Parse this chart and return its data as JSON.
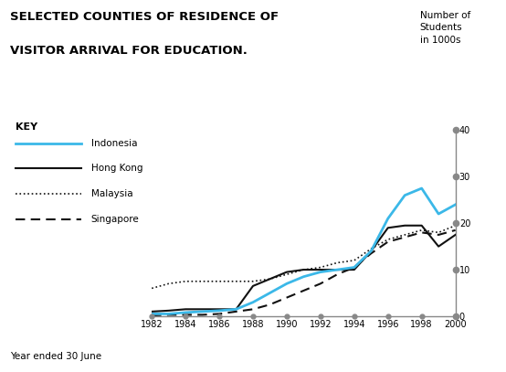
{
  "title_line1": "SELECTED COUNTIES OF RESIDENCE OF",
  "title_line2": "VISITOR ARRIVAL FOR EDUCATION.",
  "ylabel_text": "Number of\nStudents\nin 1000s",
  "xlabel": "Year ended 30 June",
  "years": [
    1982,
    1983,
    1984,
    1985,
    1986,
    1987,
    1988,
    1989,
    1990,
    1991,
    1992,
    1993,
    1994,
    1995,
    1996,
    1997,
    1998,
    1999,
    2000
  ],
  "indonesia": [
    0.5,
    0.5,
    0.8,
    1.0,
    1.2,
    1.5,
    3.0,
    5.0,
    7.0,
    8.5,
    9.5,
    10.0,
    10.5,
    14.0,
    21.0,
    26.0,
    27.5,
    22.0,
    24.0
  ],
  "hong_kong": [
    1.0,
    1.2,
    1.5,
    1.5,
    1.5,
    1.5,
    6.5,
    8.0,
    9.5,
    10.0,
    10.0,
    10.0,
    10.0,
    14.0,
    19.0,
    19.5,
    19.5,
    15.0,
    17.5
  ],
  "malaysia": [
    6.0,
    7.0,
    7.5,
    7.5,
    7.5,
    7.5,
    7.5,
    8.0,
    9.0,
    10.0,
    10.5,
    11.5,
    12.0,
    14.5,
    16.5,
    17.5,
    18.5,
    18.0,
    19.5
  ],
  "singapore": [
    0.2,
    0.3,
    0.3,
    0.3,
    0.5,
    1.0,
    1.5,
    2.5,
    4.0,
    5.5,
    7.0,
    9.0,
    10.5,
    13.5,
    16.0,
    17.0,
    18.0,
    17.5,
    18.5
  ],
  "ylim": [
    0,
    40
  ],
  "yticks": [
    0,
    10,
    20,
    30,
    40
  ],
  "xticks": [
    1982,
    1984,
    1986,
    1988,
    1990,
    1992,
    1994,
    1996,
    1998,
    2000
  ],
  "background_color": "#ffffff",
  "indonesia_color": "#3bb8e8",
  "line_color": "#111111",
  "dot_color": "#888888"
}
